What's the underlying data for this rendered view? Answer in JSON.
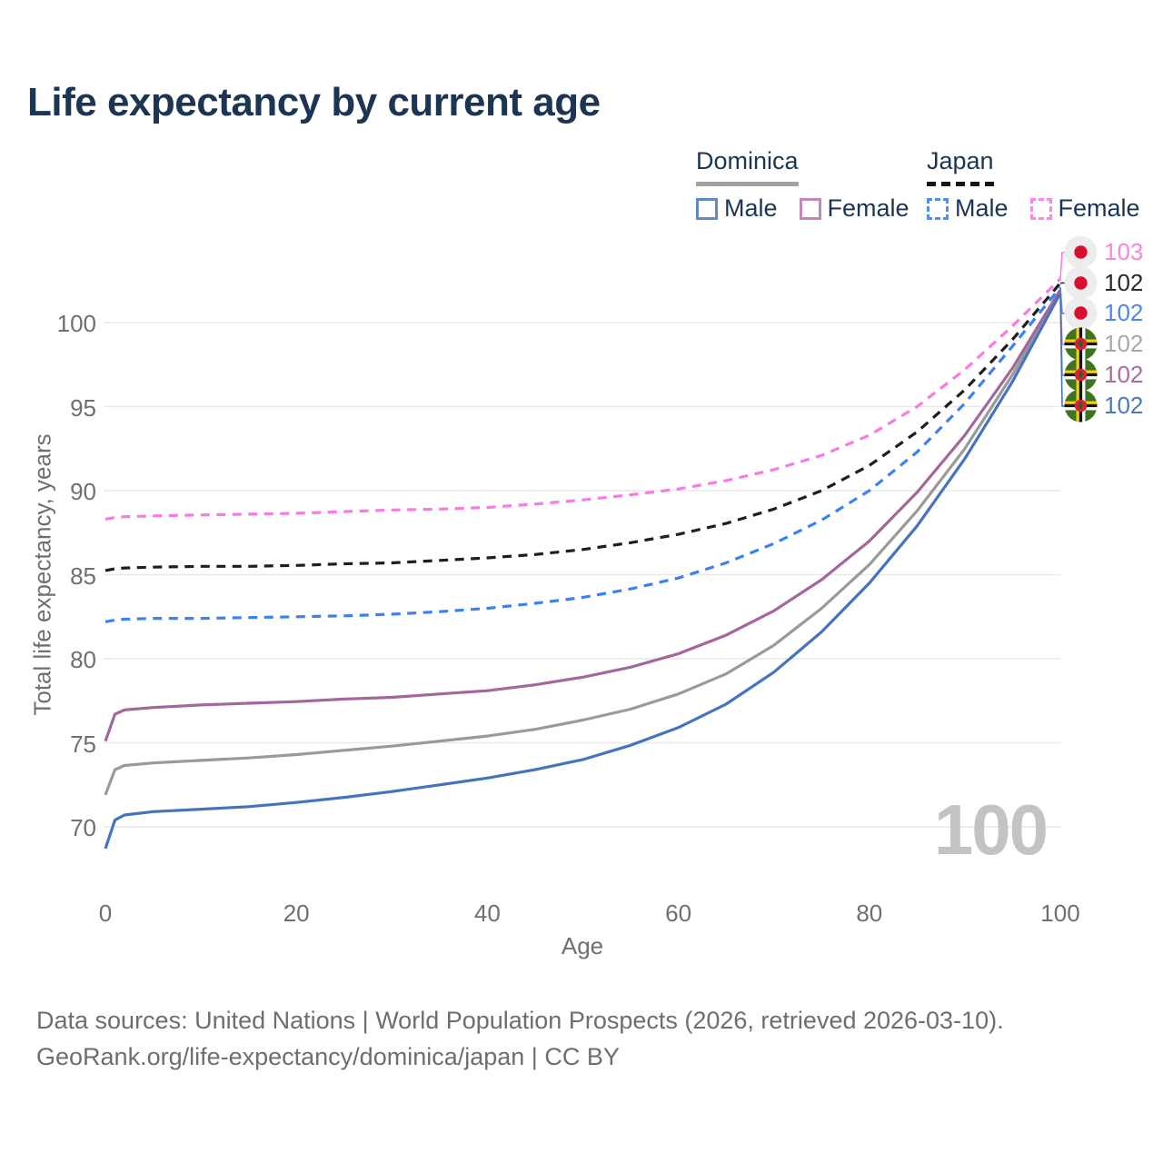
{
  "header": {
    "title": "Life expectancy by current age"
  },
  "legend": {
    "dominica": {
      "label": "Dominica",
      "male": "Male",
      "female": "Female"
    },
    "japan": {
      "label": "Japan",
      "male": "Male",
      "female": "Female"
    }
  },
  "watermark": "100",
  "footer": {
    "line1": "Data sources: United Nations | World Population Prospects (2026, retrieved 2026-03-10).",
    "line2": "GeoRank.org/life-expectancy/dominica/japan | CC BY"
  },
  "colors": {
    "title": "#1c3553",
    "axis_text": "#6f6f6f",
    "gridline": "#e9e9e9",
    "watermark": "#c3c3c3",
    "dominica_underline": "#a2a2a2",
    "japan_underline": "#161616"
  },
  "chart_data": {
    "type": "line",
    "title": "Life expectancy by current age",
    "xlabel": "Age",
    "ylabel": "Total life expectancy, years",
    "xlim": [
      0,
      100
    ],
    "ylim": [
      68,
      104
    ],
    "xticks": [
      0,
      20,
      40,
      60,
      80,
      100
    ],
    "yticks": [
      70,
      75,
      80,
      85,
      90,
      95,
      100
    ],
    "grid": "horizontal",
    "legend_position": "top-right",
    "x": [
      0,
      1,
      2,
      5,
      10,
      15,
      20,
      25,
      30,
      35,
      40,
      45,
      50,
      55,
      60,
      65,
      70,
      75,
      80,
      85,
      90,
      95,
      100
    ],
    "series": [
      {
        "id": "japan-female",
        "country": "Japan",
        "sex": "Female",
        "color": "#f87ae2",
        "label_color": "#fb85dd",
        "dashed": true,
        "flag": "japan",
        "end_label": "103",
        "values": [
          88.3,
          88.4,
          88.45,
          88.5,
          88.55,
          88.6,
          88.65,
          88.75,
          88.85,
          88.9,
          89.0,
          89.2,
          89.45,
          89.75,
          90.1,
          90.6,
          91.25,
          92.1,
          93.3,
          95.0,
          97.2,
          99.8,
          102.6
        ]
      },
      {
        "id": "japan-total",
        "country": "Japan",
        "sex": "Both sexes",
        "color": "#1e1e1e",
        "label_color": "#2a2a2a",
        "dashed": true,
        "flag": "japan",
        "end_label": "102",
        "values": [
          85.25,
          85.35,
          85.4,
          85.45,
          85.5,
          85.5,
          85.55,
          85.65,
          85.7,
          85.85,
          86.0,
          86.2,
          86.5,
          86.9,
          87.4,
          88.05,
          88.9,
          90.0,
          91.5,
          93.5,
          96.0,
          99.0,
          102.35
        ]
      },
      {
        "id": "japan-male",
        "country": "Japan",
        "sex": "Male",
        "color": "#3b82ef",
        "label_color": "#4e86ee",
        "dashed": true,
        "flag": "japan",
        "end_label": "102",
        "values": [
          82.2,
          82.3,
          82.35,
          82.4,
          82.4,
          82.45,
          82.5,
          82.55,
          82.65,
          82.8,
          83.0,
          83.3,
          83.65,
          84.15,
          84.8,
          85.7,
          86.85,
          88.25,
          90.0,
          92.3,
          95.2,
          98.6,
          102.1
        ]
      },
      {
        "id": "dominica-total",
        "country": "Dominica",
        "sex": "Both sexes",
        "color": "#9a9a9a",
        "label_color": "#a8a8a8",
        "dashed": false,
        "flag": "dominica",
        "end_label": "102",
        "values": [
          71.9,
          73.4,
          73.65,
          73.8,
          73.95,
          74.1,
          74.3,
          74.55,
          74.8,
          75.1,
          75.4,
          75.8,
          76.35,
          77.0,
          77.9,
          79.1,
          80.8,
          83.0,
          85.6,
          88.8,
          92.5,
          96.9,
          101.85
        ]
      },
      {
        "id": "dominica-female",
        "country": "Dominica",
        "sex": "Female",
        "color": "#a4679b",
        "label_color": "#aa6ba2",
        "dashed": false,
        "flag": "dominica",
        "end_label": "102",
        "values": [
          75.1,
          76.7,
          76.95,
          77.1,
          77.25,
          77.35,
          77.45,
          77.6,
          77.7,
          77.9,
          78.1,
          78.45,
          78.9,
          79.5,
          80.3,
          81.4,
          82.85,
          84.7,
          87.0,
          89.9,
          93.3,
          97.3,
          101.95
        ]
      },
      {
        "id": "dominica-male",
        "country": "Dominica",
        "sex": "Male",
        "color": "#4674bc",
        "label_color": "#4b77c1",
        "dashed": false,
        "flag": "dominica",
        "end_label": "102",
        "values": [
          68.7,
          70.4,
          70.7,
          70.9,
          71.05,
          71.2,
          71.45,
          71.75,
          72.1,
          72.5,
          72.9,
          73.4,
          74.0,
          74.85,
          75.9,
          77.3,
          79.2,
          81.6,
          84.5,
          87.9,
          91.9,
          96.5,
          101.75
        ]
      }
    ]
  }
}
